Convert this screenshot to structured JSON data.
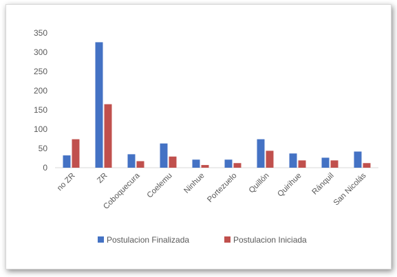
{
  "chart_data": {
    "type": "bar",
    "categories": [
      "no ZR",
      "ZR",
      "Coboquecura",
      "Coelemu",
      "Ninhue",
      "Portezuelo",
      "Quillón",
      "Quirihue",
      "Ránquil",
      "San Nicolás"
    ],
    "series": [
      {
        "name": "Postulacion Finalizada",
        "color": "#4472c4",
        "values": [
          32,
          326,
          35,
          63,
          21,
          21,
          74,
          37,
          26,
          42
        ]
      },
      {
        "name": "Postulacion Iniciada",
        "color": "#c0504d",
        "values": [
          74,
          165,
          17,
          29,
          7,
          12,
          44,
          19,
          19,
          12
        ]
      }
    ],
    "ylim": [
      0,
      350
    ],
    "yticks": [
      0,
      50,
      100,
      150,
      200,
      250,
      300,
      350
    ],
    "grid": false,
    "legend_position": "bottom"
  }
}
